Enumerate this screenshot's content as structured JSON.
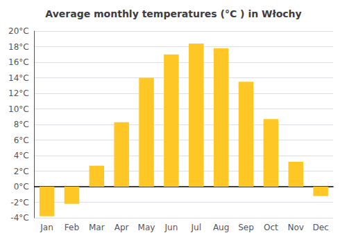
{
  "chart_data": {
    "type": "bar",
    "title": "Average monthly temperatures (°C ) in Włochy",
    "categories": [
      "Jan",
      "Feb",
      "Mar",
      "Apr",
      "May",
      "Jun",
      "Jul",
      "Aug",
      "Sep",
      "Oct",
      "Nov",
      "Dec"
    ],
    "values": [
      -3.8,
      -2.2,
      2.7,
      8.3,
      14.0,
      17.0,
      18.4,
      17.8,
      13.5,
      8.7,
      3.2,
      -1.2
    ],
    "color": "#FFC726",
    "ylim": [
      -4,
      20
    ],
    "yticks": [
      {
        "value": -4,
        "label": "-4°C"
      },
      {
        "value": -2,
        "label": "-2°C"
      },
      {
        "value": 0,
        "label": "0°C"
      },
      {
        "value": 2,
        "label": "2°C"
      },
      {
        "value": 4,
        "label": "4°C"
      },
      {
        "value": 6,
        "label": "6°C"
      },
      {
        "value": 8,
        "label": "8°C"
      },
      {
        "value": 10,
        "label": "10°C"
      },
      {
        "value": 12,
        "label": "12°C"
      },
      {
        "value": 14,
        "label": "14°C"
      },
      {
        "value": 16,
        "label": "16°C"
      },
      {
        "value": 18,
        "label": "18°C"
      },
      {
        "value": 20,
        "label": "20°C"
      }
    ],
    "grid": true
  }
}
